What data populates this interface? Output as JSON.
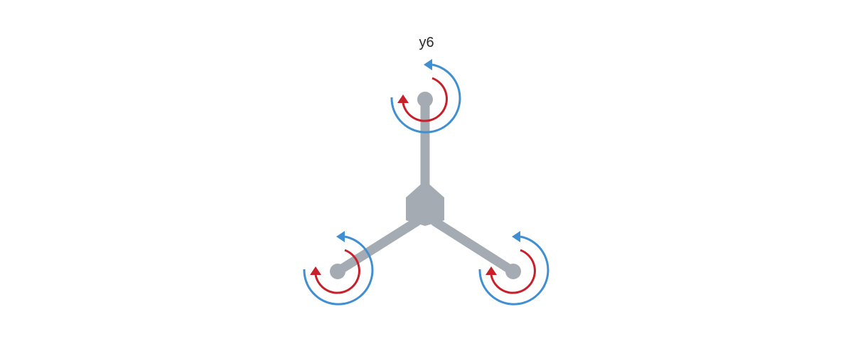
{
  "title": "y6",
  "colors": {
    "frame": "#a5abb3",
    "outer_rotor_arrow": "#3f8fd2",
    "inner_rotor_arrow": "#c8202b",
    "background": "#ffffff",
    "text": "#2b2b2b"
  },
  "motors": [
    {
      "name": "top",
      "outer_direction": "counter-clockwise",
      "inner_direction": "clockwise"
    },
    {
      "name": "bottom-left",
      "outer_direction": "counter-clockwise",
      "inner_direction": "clockwise"
    },
    {
      "name": "bottom-right",
      "outer_direction": "counter-clockwise",
      "inner_direction": "clockwise"
    }
  ]
}
